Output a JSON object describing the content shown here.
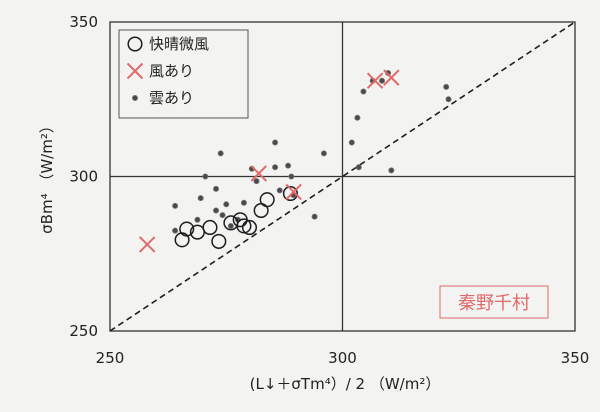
{
  "colors": {
    "background": "#f3f3f1",
    "ink": "#1e1e1e",
    "accent": "#e06a6a",
    "grid": "#333333"
  },
  "chart_data": {
    "type": "scatter",
    "xlabel": "(L↓＋σTm⁴）/ 2 （W/m²）",
    "ylabel": "σBm⁴ （W/m²）",
    "xlim": [
      250,
      350
    ],
    "ylim": [
      250,
      350
    ],
    "xticks": [
      "250",
      "300",
      "350"
    ],
    "yticks": [
      "250",
      "300",
      "350"
    ],
    "grid": true,
    "legend_position": "top-left",
    "annotation": "秦野千村",
    "reference_line": {
      "style": "dashed",
      "from": [
        250,
        250
      ],
      "to": [
        350,
        350
      ]
    },
    "series": [
      {
        "name": "快晴微風",
        "marker": "open-circle",
        "points": [
          [
            265.5,
            279.5
          ],
          [
            266.5,
            283
          ],
          [
            268.8,
            282
          ],
          [
            271.5,
            283.5
          ],
          [
            273.4,
            279
          ],
          [
            276,
            285
          ],
          [
            278,
            286
          ],
          [
            278.8,
            284
          ],
          [
            280,
            283.5
          ],
          [
            282.5,
            289
          ],
          [
            283.8,
            292.5
          ],
          [
            288.8,
            294.5
          ]
        ]
      },
      {
        "name": "風あり",
        "marker": "x",
        "points": [
          [
            258,
            278
          ],
          [
            282,
            301
          ],
          [
            289.5,
            295
          ],
          [
            307,
            331
          ],
          [
            310.5,
            332
          ]
        ]
      },
      {
        "name": "雲あり",
        "marker": "small-dot",
        "points": [
          [
            264,
            290.5
          ],
          [
            264,
            282.5
          ],
          [
            268.8,
            286
          ],
          [
            269.5,
            293
          ],
          [
            270.5,
            300
          ],
          [
            272.8,
            296
          ],
          [
            273.8,
            307.5
          ],
          [
            272.8,
            289
          ],
          [
            274.2,
            287.5
          ],
          [
            275,
            291
          ],
          [
            276,
            284
          ],
          [
            277.5,
            286
          ],
          [
            278.8,
            291.5
          ],
          [
            281.5,
            298.5
          ],
          [
            280.5,
            302.5
          ],
          [
            285.5,
            303
          ],
          [
            285.5,
            311
          ],
          [
            286.5,
            295.5
          ],
          [
            288.3,
            303.5
          ],
          [
            289,
            300
          ],
          [
            289.4,
            294
          ],
          [
            294,
            287
          ],
          [
            296,
            307.5
          ],
          [
            302,
            311
          ],
          [
            303.2,
            319
          ],
          [
            303.5,
            303
          ],
          [
            304.5,
            327.5
          ],
          [
            306.5,
            331
          ],
          [
            308.5,
            331
          ],
          [
            309.8,
            333.5
          ],
          [
            310.5,
            302
          ],
          [
            322.3,
            329
          ],
          [
            322.8,
            325
          ]
        ]
      }
    ]
  }
}
